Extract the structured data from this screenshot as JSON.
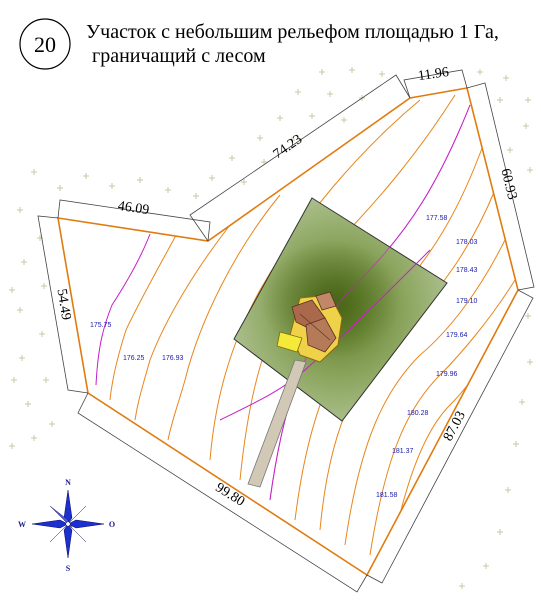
{
  "header": {
    "plot_number": "20",
    "title_line1": "Участок с небольшим рельефом площадью 1 Га,",
    "title_line2": "граничащий с лесом"
  },
  "dimensions": {
    "left_top": "46.09",
    "left_side": "54.49",
    "top_diagonal": "74.23",
    "top_short": "11.96",
    "right_top": "60.93",
    "right_bottom": "87.03",
    "bottom": "99.80"
  },
  "elevations": [
    "175.75",
    "176.25",
    "176.93",
    "177.58",
    "178.03",
    "178.43",
    "179.10",
    "179.64",
    "179.96",
    "180.28",
    "181.37",
    "181.58"
  ],
  "compass": {
    "north": "N",
    "south": "S",
    "west": "W",
    "east": "O"
  },
  "colors": {
    "boundary": "#e07b10",
    "contour_orange": "#e8861c",
    "contour_magenta": "#c81ec8",
    "elev_label": "#1a1aa8",
    "forest_cross": "#c8c8a8",
    "building_zone": "#7e9a50",
    "driveway": "#d0c8b8"
  }
}
